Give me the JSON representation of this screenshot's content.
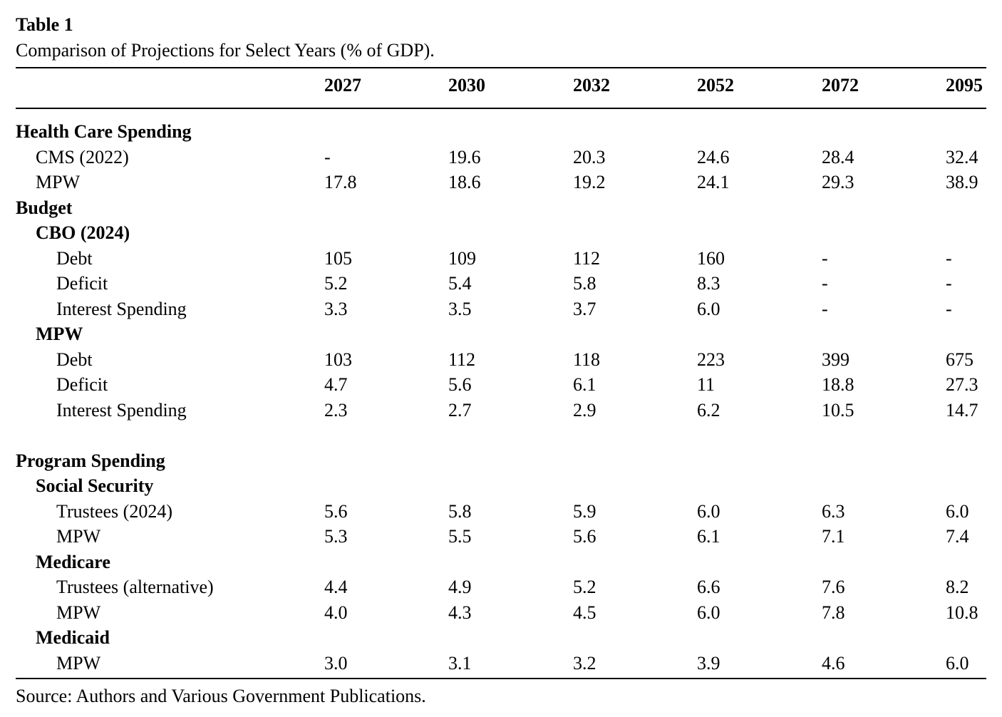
{
  "caption": {
    "label": "Table 1",
    "text": "Comparison of Projections for Select Years (% of GDP)."
  },
  "columns": [
    "2027",
    "2030",
    "2032",
    "2052",
    "2072",
    "2095"
  ],
  "rows": [
    {
      "label": "Health Care Spending",
      "level": "section",
      "values": []
    },
    {
      "label": "CMS (2022)",
      "level": "item",
      "values": [
        "-",
        "19.6",
        "20.3",
        "24.6",
        "28.4",
        "32.4"
      ]
    },
    {
      "label": "MPW",
      "level": "item",
      "values": [
        "17.8",
        "18.6",
        "19.2",
        "24.1",
        "29.3",
        "38.9"
      ]
    },
    {
      "label": "Budget",
      "level": "section",
      "values": []
    },
    {
      "label": "CBO (2024)",
      "level": "subsection",
      "values": []
    },
    {
      "label": "Debt",
      "level": "subitem",
      "values": [
        "105",
        "109",
        "112",
        "160",
        "-",
        "-"
      ]
    },
    {
      "label": "Deficit",
      "level": "subitem",
      "values": [
        "5.2",
        "5.4",
        "5.8",
        "8.3",
        "-",
        "-"
      ]
    },
    {
      "label": "Interest Spending",
      "level": "subitem",
      "values": [
        "3.3",
        "3.5",
        "3.7",
        "6.0",
        "-",
        "-"
      ]
    },
    {
      "label": "MPW",
      "level": "subsection",
      "values": []
    },
    {
      "label": "Debt",
      "level": "subitem",
      "values": [
        "103",
        "112",
        "118",
        "223",
        "399",
        "675"
      ]
    },
    {
      "label": "Deficit",
      "level": "subitem",
      "values": [
        "4.7",
        "5.6",
        "6.1",
        "11",
        "18.8",
        "27.3"
      ]
    },
    {
      "label": "Interest Spending",
      "level": "subitem",
      "values": [
        "2.3",
        "2.7",
        "2.9",
        "6.2",
        "10.5",
        "14.7"
      ]
    },
    {
      "label": "",
      "level": "spacer",
      "values": []
    },
    {
      "label": "Program Spending",
      "level": "section",
      "values": []
    },
    {
      "label": "Social Security",
      "level": "subsection",
      "values": []
    },
    {
      "label": "Trustees (2024)",
      "level": "subitem",
      "values": [
        "5.6",
        "5.8",
        "5.9",
        "6.0",
        "6.3",
        "6.0"
      ]
    },
    {
      "label": "MPW",
      "level": "subitem",
      "values": [
        "5.3",
        "5.5",
        "5.6",
        "6.1",
        "7.1",
        "7.4"
      ]
    },
    {
      "label": "Medicare",
      "level": "subsection",
      "values": []
    },
    {
      "label": "Trustees (alternative)",
      "level": "subitem",
      "values": [
        "4.4",
        "4.9",
        "5.2",
        "6.6",
        "7.6",
        "8.2"
      ]
    },
    {
      "label": "MPW",
      "level": "subitem",
      "values": [
        "4.0",
        "4.3",
        "4.5",
        "6.0",
        "7.8",
        "10.8"
      ]
    },
    {
      "label": "Medicaid",
      "level": "subsection",
      "values": []
    },
    {
      "label": "MPW",
      "level": "subitem",
      "values": [
        "3.0",
        "3.1",
        "3.2",
        "3.9",
        "4.6",
        "6.0"
      ]
    }
  ],
  "source": "Source: Authors and Various Government Publications."
}
